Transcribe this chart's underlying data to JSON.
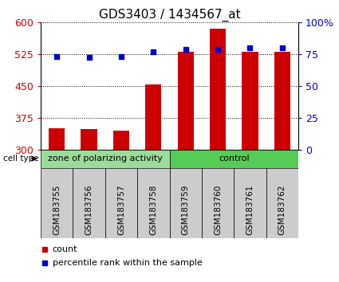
{
  "title": "GDS3403 / 1434567_at",
  "samples": [
    "GSM183755",
    "GSM183756",
    "GSM183757",
    "GSM183758",
    "GSM183759",
    "GSM183760",
    "GSM183761",
    "GSM183762"
  ],
  "bar_values": [
    350,
    348,
    344,
    453,
    530,
    586,
    530,
    530
  ],
  "percentile_values": [
    73.5,
    72.5,
    73.5,
    77.0,
    79.0,
    79.0,
    80.0,
    80.0
  ],
  "bar_color": "#cc0000",
  "marker_color": "#0000cc",
  "ylim_left": [
    300,
    600
  ],
  "ylim_right": [
    0,
    100
  ],
  "yticks_left": [
    300,
    375,
    450,
    525,
    600
  ],
  "ytick_labels_left": [
    "300",
    "375",
    "450",
    "525",
    "600"
  ],
  "yticks_right": [
    0,
    25,
    50,
    75,
    100
  ],
  "ytick_labels_right": [
    "0",
    "25",
    "50",
    "75",
    "100%"
  ],
  "groups": [
    {
      "label": "zone of polarizing activity",
      "start": 0,
      "end": 4,
      "color": "#99dd99"
    },
    {
      "label": "control",
      "start": 4,
      "end": 8,
      "color": "#55cc55"
    }
  ],
  "legend_count_label": "count",
  "legend_percentile_label": "percentile rank within the sample",
  "bar_width": 0.5,
  "background_color": "#ffffff",
  "plot_bg_color": "#ffffff",
  "tick_area_bg": "#cccccc",
  "title_fontsize": 11,
  "axis_fontsize": 9,
  "label_fontsize": 8
}
